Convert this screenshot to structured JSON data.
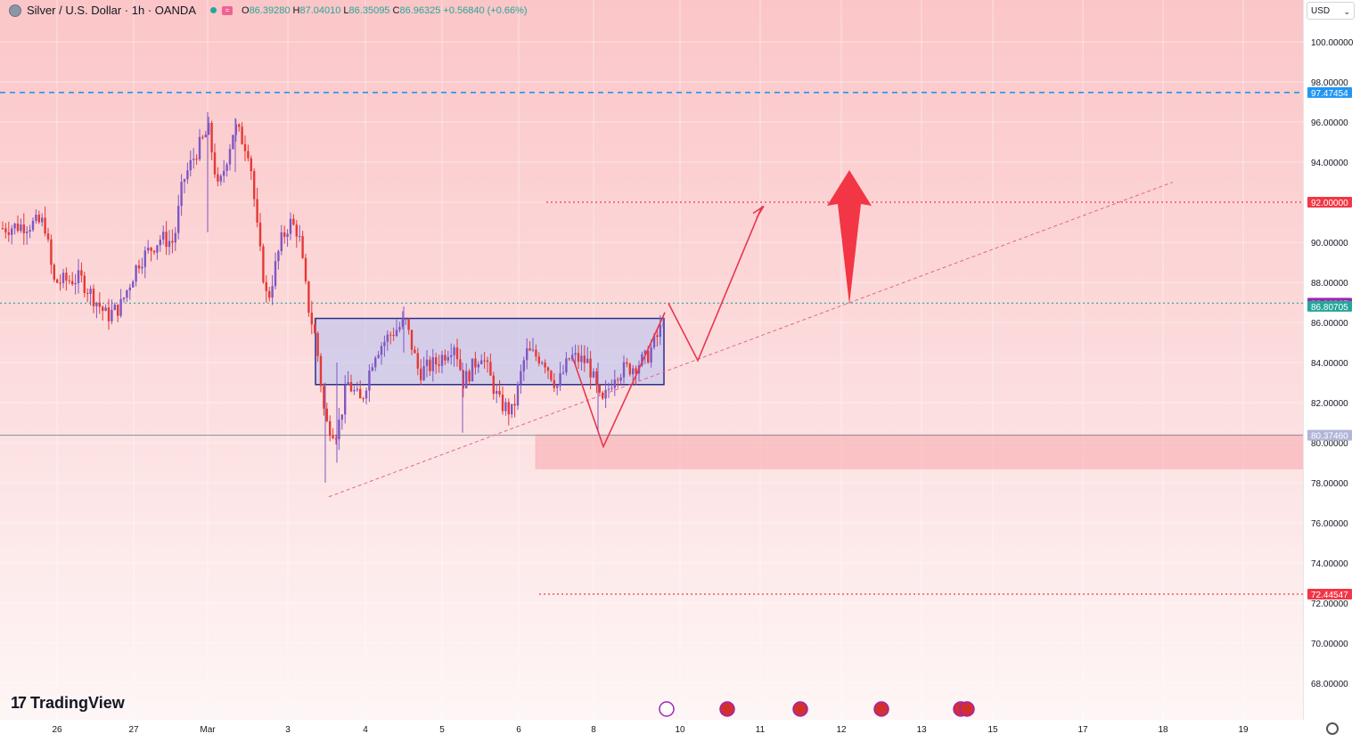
{
  "legend": {
    "symbol": "Silver / U.S. Dollar · 1h · OANDA",
    "o_key": "O",
    "o_val": "86.39280",
    "h_key": "H",
    "h_val": "87.04010",
    "l_key": "L",
    "l_val": "86.35095",
    "c_key": "C",
    "c_val": "86.96325",
    "change": "+0.56840 (+0.66%)"
  },
  "currency": {
    "label": "USD"
  },
  "brand": {
    "name": "TradingView",
    "mark": "17"
  },
  "colors": {
    "bull": "#26a69a",
    "accent_red": "#f23645",
    "box": "#2a2e8c",
    "level_blue": "#2196f3"
  },
  "chart_data": {
    "type": "candlestick",
    "symbol": "Silver / U.S. Dollar",
    "interval": "1h",
    "source": "OANDA",
    "ylim": [
      67.0,
      101.5
    ],
    "y_ticks": [
      "100.00000",
      "98.00000",
      "96.00000",
      "94.00000",
      "92.00000",
      "90.00000",
      "88.00000",
      "86.00000",
      "84.00000",
      "82.00000",
      "80.00000",
      "78.00000",
      "76.00000",
      "74.00000",
      "72.00000",
      "70.00000",
      "68.00000"
    ],
    "x_ticks": [
      "26",
      "27",
      "Mar",
      "3",
      "4",
      "5",
      "6",
      "8",
      "10",
      "11",
      "12",
      "13",
      "15",
      "17",
      "18",
      "19"
    ],
    "price_series_approx": [
      [
        "26",
        90.8
      ],
      [
        "26",
        90.2
      ],
      [
        "27",
        86.5
      ],
      [
        "27",
        88.5
      ],
      [
        "Mar",
        94.0
      ],
      [
        "Mar",
        95.6
      ],
      [
        "Mar",
        94.5
      ],
      [
        "3",
        88.0
      ],
      [
        "3",
        90.5
      ],
      [
        "3",
        86.0
      ],
      [
        "3",
        81.5
      ],
      [
        "4",
        82.5
      ],
      [
        "4",
        84.5
      ],
      [
        "4",
        85.8
      ],
      [
        "5",
        84.0
      ],
      [
        "5",
        83.8
      ],
      [
        "6",
        82.5
      ],
      [
        "6",
        84.0
      ],
      [
        "8",
        84.2
      ],
      [
        "8",
        81.8
      ],
      [
        "8",
        84.0
      ],
      [
        "10",
        86.96
      ]
    ],
    "price_labels": [
      {
        "value": "97.47454",
        "color": "#2196f3"
      },
      {
        "value": "92.00000",
        "color": "#f23645"
      },
      {
        "value": "86.96325",
        "color": "#9c27b0"
      },
      {
        "value": "86.80705",
        "color": "#26a69a"
      },
      {
        "value": "80.37460",
        "color": "#b2b5d8"
      },
      {
        "value": "72.44547",
        "color": "#f23645"
      }
    ],
    "levels": [
      {
        "price": 97.47454,
        "style": "dashed",
        "color": "#2196f3"
      },
      {
        "price": 92.0,
        "style": "dotted",
        "color": "#f23645"
      },
      {
        "price": 86.96325,
        "style": "dotted",
        "color": "#26a69a"
      },
      {
        "price": 80.3746,
        "style": "solid",
        "color": "#9598a1"
      },
      {
        "price": 72.44547,
        "style": "dotted",
        "color": "#f23645"
      }
    ],
    "range_box": {
      "top": 86.2,
      "bottom": 82.9
    },
    "demand_zone": {
      "top": 80.4,
      "bottom": 78.7
    },
    "trendline": {
      "from": 77.3,
      "to": 93.0
    },
    "projection_path": [
      86.96,
      84.1,
      91.8
    ],
    "zigzag_path": [
      84.2,
      79.8,
      86.5
    ],
    "target_arrow": {
      "from": 86.9,
      "to": 93.6
    }
  }
}
